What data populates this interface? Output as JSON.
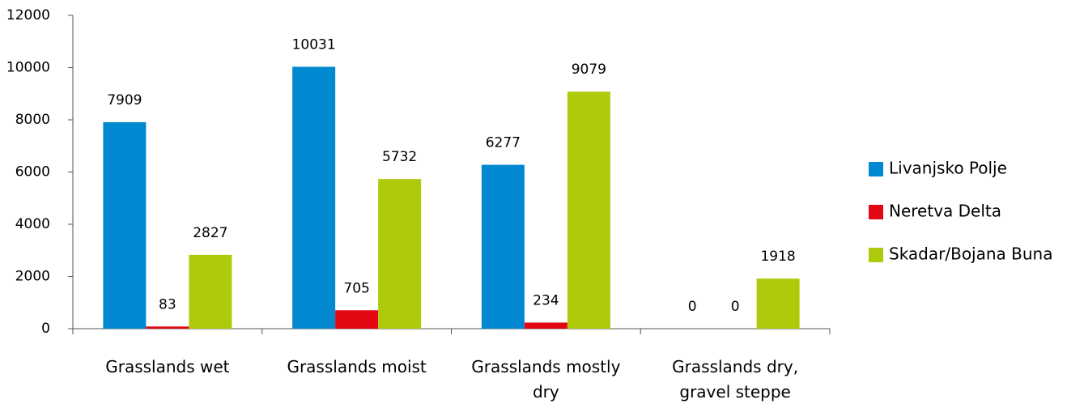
{
  "chart_data": {
    "type": "bar",
    "categories": [
      "Grasslands wet",
      "Grasslands moist",
      "Grasslands mostly dry",
      "Grasslands dry, gravel steppe"
    ],
    "series": [
      {
        "name": "Livanjsko Polje",
        "color": "#0088d1",
        "values": [
          7909,
          10031,
          6277,
          0
        ]
      },
      {
        "name": "Neretva Delta",
        "color": "#e30613",
        "values": [
          83,
          705,
          234,
          0
        ]
      },
      {
        "name": "Skadar/Bojana Buna",
        "color": "#afca0b",
        "values": [
          2827,
          5732,
          9079,
          1918
        ]
      }
    ],
    "ylim": [
      0,
      12000
    ],
    "yticks": [
      0,
      2000,
      4000,
      6000,
      8000,
      10000,
      12000
    ],
    "legend": "right"
  }
}
